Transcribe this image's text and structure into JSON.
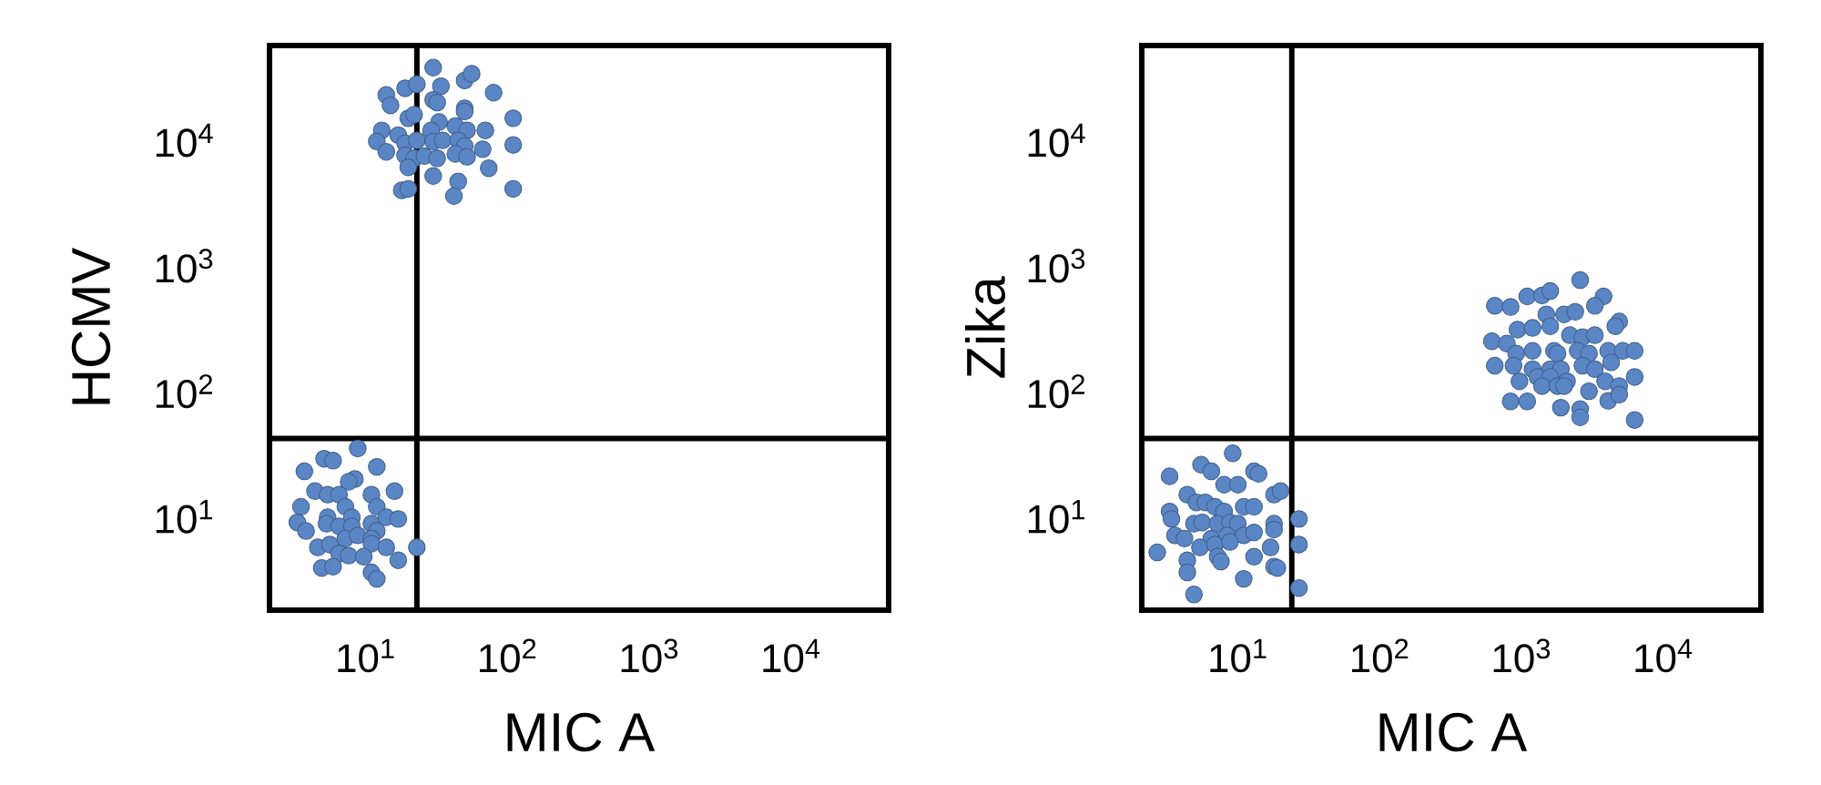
{
  "chart_data": [
    {
      "type": "scatter",
      "xlabel": "MIC A",
      "ylabel": "HCMV",
      "log": "xy",
      "xlim": [
        2.1,
        49000
      ],
      "ylim": [
        1.8,
        57000
      ],
      "xticks": [
        {
          "value": 10,
          "label": "10$^{1}$"
        },
        {
          "value": 100,
          "label": "10$^{2}$"
        },
        {
          "value": 1000,
          "label": "10$^{3}$"
        },
        {
          "value": 10000,
          "label": "10$^{4}$"
        }
      ],
      "yticks": [
        {
          "value": 10,
          "label": "10$^{1}$"
        },
        {
          "value": 100,
          "label": "10$^{2}$"
        },
        {
          "value": 1000,
          "label": "10$^{3}$"
        },
        {
          "value": 10000,
          "label": "10$^{4}$"
        }
      ],
      "marker": "circle",
      "ref_lines": [
        {
          "axis": "x",
          "value": 23,
          "color": "#000000"
        },
        {
          "axis": "y",
          "value": 42,
          "color": "#000000"
        }
      ],
      "series": [
        {
          "color": "#5b86c5",
          "x": [
            30,
            50,
            56,
            14,
            15,
            19,
            23,
            34,
            30,
            32,
            80,
            50,
            50,
            110,
            20,
            22,
            33,
            43,
            52,
            70,
            13,
            12,
            14,
            17,
            19,
            23,
            29,
            30,
            35,
            45,
            50,
            110,
            67,
            19,
            22,
            26,
            32,
            43,
            52,
            20,
            74,
            30,
            45,
            18,
            20,
            42,
            110,
            8.8,
            5.1,
            5.9,
            3.7,
            12,
            8.4,
            7.6,
            4.4,
            5.4,
            6.5,
            16,
            11,
            12,
            3.5,
            7.2,
            5.4,
            5.3,
            8,
            14,
            17,
            3.3,
            3.8,
            11,
            6.5,
            8,
            12,
            7.2,
            8.8,
            4.6,
            5.6,
            11,
            11,
            6.5,
            7.6,
            9.7,
            14,
            17,
            23,
            4.9,
            5.9,
            11,
            12
          ],
          "values": [
            38000,
            30000,
            34000,
            23000,
            19000,
            26000,
            28000,
            27000,
            21000,
            20000,
            24000,
            18000,
            17000,
            15000,
            15000,
            16000,
            14000,
            13000,
            12000,
            12000,
            12000,
            9800,
            8100,
            11000,
            9500,
            10000,
            12000,
            9800,
            10000,
            10000,
            9000,
            9200,
            8500,
            7600,
            7200,
            7500,
            7200,
            7800,
            7400,
            6100,
            6000,
            5200,
            4700,
            4000,
            4100,
            3600,
            4100,
            35,
            29,
            28,
            23,
            25,
            20,
            19,
            16,
            15,
            15,
            16,
            15,
            12,
            12,
            12,
            9.9,
            8.8,
            9.9,
            9.9,
            9.6,
            9,
            7.7,
            8.8,
            8.4,
            8.4,
            7.7,
            6.7,
            7.1,
            5.7,
            6,
            6.7,
            6.1,
            5.1,
            4.9,
            4.8,
            5.7,
            4.5,
            5.7,
            3.9,
            4,
            3.6,
            3.2
          ]
        }
      ]
    },
    {
      "type": "scatter",
      "xlabel": "MIC A",
      "ylabel": "Zika",
      "log": "xy",
      "xlim": [
        2.1,
        49000
      ],
      "ylim": [
        1.8,
        57000
      ],
      "xticks": [
        {
          "value": 10,
          "label": "10$^{1}$"
        },
        {
          "value": 100,
          "label": "10$^{2}$"
        },
        {
          "value": 1000,
          "label": "10$^{3}$"
        },
        {
          "value": 10000,
          "label": "10$^{4}$"
        }
      ],
      "yticks": [
        {
          "value": 10,
          "label": "10$^{1}$"
        },
        {
          "value": 100,
          "label": "10$^{2}$"
        },
        {
          "value": 1000,
          "label": "10$^{3}$"
        },
        {
          "value": 10000,
          "label": "10$^{4}$"
        }
      ],
      "marker": "circle",
      "ref_lines": [
        {
          "axis": "x",
          "value": 24,
          "color": "#000000"
        },
        {
          "axis": "y",
          "value": 42,
          "color": "#000000"
        }
      ],
      "series": [
        {
          "color": "#5b86c5",
          "x": [
            9.2,
            5.5,
            6.5,
            13,
            14,
            3.3,
            8,
            10,
            4.4,
            5.1,
            5.9,
            18,
            20,
            6.9,
            8,
            11,
            13,
            3.3,
            3.4,
            4.9,
            5.6,
            7.2,
            8.8,
            10,
            18,
            18,
            27,
            3.6,
            4.2,
            6.5,
            8.4,
            11,
            13,
            5.4,
            6.9,
            8.8,
            17,
            27,
            2.7,
            4.4,
            7.2,
            7.6,
            13,
            18,
            19,
            4.4,
            11,
            27,
            4.9,
            2600,
            650,
            840,
            1100,
            1400,
            1600,
            3800,
            3300,
            1500,
            2000,
            2400,
            4900,
            4600,
            940,
            1200,
            1600,
            620,
            790,
            2200,
            2700,
            3300,
            920,
            1200,
            1700,
            1800,
            2500,
            3000,
            4100,
            5200,
            6300,
            650,
            880,
            1200,
            1600,
            1900,
            2700,
            3300,
            4300,
            970,
            1300,
            1600,
            2100,
            3900,
            4900,
            6300,
            1400,
            1800,
            2000,
            3000,
            4100,
            4900,
            840,
            1100,
            1900,
            2600,
            2600,
            6300
          ],
          "values": [
            32,
            26,
            23,
            23,
            22,
            21,
            18,
            18,
            15,
            13,
            13,
            15,
            16,
            12,
            11,
            12,
            12,
            11,
            9.6,
            8.8,
            9,
            8.8,
            9,
            8.8,
            8.8,
            7.9,
            9.6,
            7.1,
            6.7,
            6.7,
            7.1,
            7.1,
            7.5,
            5.7,
            6,
            6.3,
            5.7,
            6,
            5.2,
            4.5,
            4.8,
            4.4,
            4.8,
            4,
            3.9,
            3.6,
            3.2,
            2.7,
            2.4,
            770,
            480,
            470,
            570,
            580,
            630,
            570,
            480,
            410,
            410,
            430,
            360,
            330,
            310,
            320,
            330,
            250,
            240,
            280,
            270,
            280,
            200,
            210,
            210,
            200,
            210,
            200,
            210,
            210,
            210,
            160,
            160,
            150,
            150,
            150,
            160,
            150,
            170,
            120,
            130,
            130,
            120,
            120,
            110,
            130,
            110,
            110,
            110,
            100,
            84,
            94,
            83,
            83,
            74,
            72,
            62,
            59
          ]
        }
      ]
    }
  ]
}
